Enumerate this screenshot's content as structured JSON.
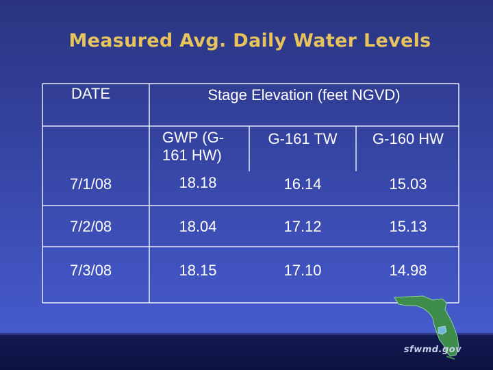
{
  "slide": {
    "title": "Measured Avg. Daily Water Levels"
  },
  "table": {
    "date_header": "DATE",
    "group_header": "Stage Elevation (feet NGVD)",
    "columns": [
      "GWP (G-\n161 HW)",
      "G-161 TW",
      "G-160 HW"
    ],
    "rows": [
      {
        "date": "7/1/08",
        "values": [
          "18.18",
          "16.14",
          "15.03"
        ]
      },
      {
        "date": "7/2/08",
        "values": [
          "18.04",
          "17.12",
          "15.13"
        ]
      },
      {
        "date": "7/3/08",
        "values": [
          "18.15",
          "17.10",
          "14.98"
        ]
      }
    ]
  },
  "footer": {
    "site": "sfwmd.gov"
  },
  "colors": {
    "background": "#3746a6",
    "title": "#e6c35c",
    "text": "#ffffff",
    "rule": "#e8ecf8",
    "map": "#3e8c4c"
  }
}
